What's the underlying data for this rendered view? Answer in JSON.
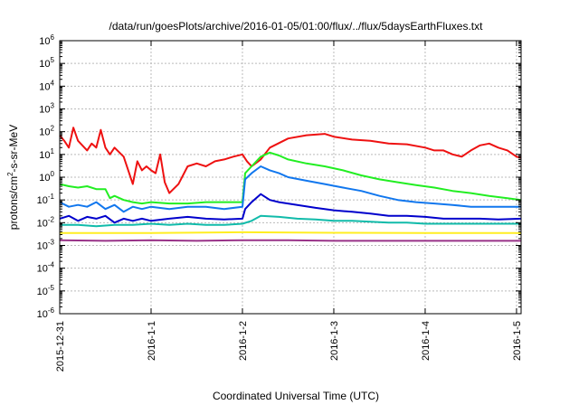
{
  "chart_data": {
    "type": "line",
    "title": "/data/run/goesPlots/archive/2016-01-05/01:00/flux/../flux/5daysEarthFluxes.txt",
    "xlabel": "Coordinated Universal Time (UTC)",
    "ylabel_parts": {
      "base": "protons/cm",
      "sup": "2",
      "rest": "-s-sr-MeV"
    },
    "yscale": "log",
    "ylim": [
      1e-06,
      1000000.0
    ],
    "ytick_exponents": [
      -6,
      -5,
      -4,
      -3,
      -2,
      -1,
      0,
      1,
      2,
      3,
      4,
      5,
      6
    ],
    "ytick_base": "10",
    "xlim_days": [
      0,
      5.05
    ],
    "xticks": [
      {
        "day": 0,
        "label": "2015-12-31"
      },
      {
        "day": 1,
        "label": "2016-1-1"
      },
      {
        "day": 2,
        "label": "2016-1-2"
      },
      {
        "day": 3,
        "label": "2016-1-3"
      },
      {
        "day": 4,
        "label": "2016-1-4"
      },
      {
        "day": 5,
        "label": "2016-1-5"
      }
    ],
    "grid": true,
    "series": [
      {
        "color": "#ee1111",
        "points": [
          [
            0,
            70
          ],
          [
            0.05,
            40
          ],
          [
            0.1,
            20
          ],
          [
            0.15,
            150
          ],
          [
            0.2,
            40
          ],
          [
            0.3,
            15
          ],
          [
            0.35,
            30
          ],
          [
            0.4,
            20
          ],
          [
            0.45,
            120
          ],
          [
            0.5,
            20
          ],
          [
            0.55,
            10
          ],
          [
            0.6,
            20
          ],
          [
            0.7,
            8
          ],
          [
            0.8,
            0.5
          ],
          [
            0.85,
            5
          ],
          [
            0.9,
            2
          ],
          [
            0.95,
            3
          ],
          [
            1.0,
            2
          ],
          [
            1.05,
            1.5
          ],
          [
            1.1,
            10
          ],
          [
            1.15,
            0.6
          ],
          [
            1.2,
            0.2
          ],
          [
            1.3,
            0.5
          ],
          [
            1.4,
            3
          ],
          [
            1.5,
            4
          ],
          [
            1.6,
            3
          ],
          [
            1.7,
            5
          ],
          [
            1.8,
            6
          ],
          [
            1.9,
            8
          ],
          [
            2.0,
            10
          ],
          [
            2.05,
            5
          ],
          [
            2.1,
            3
          ],
          [
            2.2,
            6
          ],
          [
            2.3,
            20
          ],
          [
            2.5,
            50
          ],
          [
            2.7,
            70
          ],
          [
            2.9,
            80
          ],
          [
            3.0,
            60
          ],
          [
            3.2,
            45
          ],
          [
            3.4,
            40
          ],
          [
            3.6,
            30
          ],
          [
            3.8,
            28
          ],
          [
            4.0,
            20
          ],
          [
            4.1,
            15
          ],
          [
            4.2,
            15
          ],
          [
            4.3,
            10
          ],
          [
            4.4,
            8
          ],
          [
            4.5,
            15
          ],
          [
            4.6,
            25
          ],
          [
            4.7,
            30
          ],
          [
            4.8,
            20
          ],
          [
            4.9,
            15
          ],
          [
            5.0,
            8
          ],
          [
            5.05,
            7
          ]
        ]
      },
      {
        "color": "#22ee22",
        "points": [
          [
            0,
            0.5
          ],
          [
            0.1,
            0.4
          ],
          [
            0.2,
            0.35
          ],
          [
            0.3,
            0.4
          ],
          [
            0.4,
            0.3
          ],
          [
            0.5,
            0.3
          ],
          [
            0.55,
            0.12
          ],
          [
            0.6,
            0.15
          ],
          [
            0.7,
            0.1
          ],
          [
            0.8,
            0.08
          ],
          [
            0.9,
            0.07
          ],
          [
            1.0,
            0.08
          ],
          [
            1.2,
            0.07
          ],
          [
            1.4,
            0.07
          ],
          [
            1.6,
            0.08
          ],
          [
            1.8,
            0.08
          ],
          [
            2.0,
            0.08
          ],
          [
            2.03,
            1.5
          ],
          [
            2.1,
            3
          ],
          [
            2.2,
            8
          ],
          [
            2.3,
            12
          ],
          [
            2.4,
            9
          ],
          [
            2.5,
            6
          ],
          [
            2.7,
            4
          ],
          [
            2.9,
            3
          ],
          [
            3.1,
            2
          ],
          [
            3.3,
            1.2
          ],
          [
            3.5,
            0.8
          ],
          [
            3.7,
            0.6
          ],
          [
            3.9,
            0.45
          ],
          [
            4.1,
            0.35
          ],
          [
            4.3,
            0.25
          ],
          [
            4.5,
            0.2
          ],
          [
            4.7,
            0.15
          ],
          [
            4.9,
            0.12
          ],
          [
            5.05,
            0.1
          ]
        ]
      },
      {
        "color": "#1177ee",
        "points": [
          [
            0,
            0.08
          ],
          [
            0.1,
            0.05
          ],
          [
            0.2,
            0.06
          ],
          [
            0.3,
            0.05
          ],
          [
            0.4,
            0.08
          ],
          [
            0.5,
            0.04
          ],
          [
            0.6,
            0.06
          ],
          [
            0.7,
            0.03
          ],
          [
            0.8,
            0.05
          ],
          [
            0.9,
            0.04
          ],
          [
            1.0,
            0.05
          ],
          [
            1.2,
            0.04
          ],
          [
            1.4,
            0.05
          ],
          [
            1.6,
            0.05
          ],
          [
            1.8,
            0.04
          ],
          [
            2.0,
            0.05
          ],
          [
            2.03,
            0.8
          ],
          [
            2.1,
            1.5
          ],
          [
            2.2,
            3
          ],
          [
            2.3,
            2
          ],
          [
            2.4,
            1.5
          ],
          [
            2.5,
            1
          ],
          [
            2.7,
            0.7
          ],
          [
            2.9,
            0.5
          ],
          [
            3.1,
            0.35
          ],
          [
            3.3,
            0.25
          ],
          [
            3.5,
            0.15
          ],
          [
            3.7,
            0.1
          ],
          [
            3.9,
            0.08
          ],
          [
            4.1,
            0.07
          ],
          [
            4.3,
            0.06
          ],
          [
            4.5,
            0.05
          ],
          [
            4.7,
            0.05
          ],
          [
            4.9,
            0.05
          ],
          [
            5.05,
            0.05
          ]
        ]
      },
      {
        "color": "#0000cc",
        "points": [
          [
            0,
            0.015
          ],
          [
            0.1,
            0.02
          ],
          [
            0.2,
            0.012
          ],
          [
            0.3,
            0.018
          ],
          [
            0.4,
            0.015
          ],
          [
            0.5,
            0.02
          ],
          [
            0.6,
            0.01
          ],
          [
            0.7,
            0.015
          ],
          [
            0.8,
            0.012
          ],
          [
            0.9,
            0.015
          ],
          [
            1.0,
            0.012
          ],
          [
            1.2,
            0.015
          ],
          [
            1.4,
            0.018
          ],
          [
            1.6,
            0.015
          ],
          [
            1.8,
            0.014
          ],
          [
            2.0,
            0.015
          ],
          [
            2.03,
            0.04
          ],
          [
            2.1,
            0.08
          ],
          [
            2.2,
            0.18
          ],
          [
            2.3,
            0.1
          ],
          [
            2.4,
            0.08
          ],
          [
            2.6,
            0.06
          ],
          [
            2.8,
            0.045
          ],
          [
            3.0,
            0.035
          ],
          [
            3.2,
            0.03
          ],
          [
            3.4,
            0.025
          ],
          [
            3.6,
            0.02
          ],
          [
            3.8,
            0.02
          ],
          [
            4.0,
            0.018
          ],
          [
            4.2,
            0.015
          ],
          [
            4.4,
            0.015
          ],
          [
            4.6,
            0.015
          ],
          [
            4.8,
            0.014
          ],
          [
            5.05,
            0.015
          ]
        ]
      },
      {
        "color": "#11bbaa",
        "points": [
          [
            0,
            0.008
          ],
          [
            0.2,
            0.008
          ],
          [
            0.4,
            0.007
          ],
          [
            0.6,
            0.008
          ],
          [
            0.8,
            0.008
          ],
          [
            1.0,
            0.009
          ],
          [
            1.2,
            0.008
          ],
          [
            1.4,
            0.009
          ],
          [
            1.6,
            0.008
          ],
          [
            1.8,
            0.008
          ],
          [
            2.0,
            0.009
          ],
          [
            2.1,
            0.012
          ],
          [
            2.2,
            0.02
          ],
          [
            2.4,
            0.018
          ],
          [
            2.6,
            0.015
          ],
          [
            2.8,
            0.014
          ],
          [
            3.0,
            0.012
          ],
          [
            3.2,
            0.012
          ],
          [
            3.4,
            0.011
          ],
          [
            3.6,
            0.01
          ],
          [
            3.8,
            0.01
          ],
          [
            4.0,
            0.009
          ],
          [
            4.2,
            0.009
          ],
          [
            4.4,
            0.009
          ],
          [
            4.6,
            0.009
          ],
          [
            4.8,
            0.009
          ],
          [
            5.05,
            0.009
          ]
        ]
      },
      {
        "color": "#ffee22",
        "points": [
          [
            0,
            0.0035
          ],
          [
            1,
            0.0035
          ],
          [
            2,
            0.0038
          ],
          [
            3,
            0.0036
          ],
          [
            4,
            0.0035
          ],
          [
            5.05,
            0.0035
          ]
        ]
      },
      {
        "color": "#993388",
        "points": [
          [
            0,
            0.0017
          ],
          [
            0.5,
            0.0016
          ],
          [
            1,
            0.0017
          ],
          [
            1.5,
            0.0016
          ],
          [
            2,
            0.0017
          ],
          [
            2.5,
            0.0017
          ],
          [
            3,
            0.0016
          ],
          [
            3.5,
            0.0016
          ],
          [
            4,
            0.0016
          ],
          [
            4.5,
            0.0016
          ],
          [
            5.05,
            0.0016
          ]
        ]
      }
    ]
  }
}
